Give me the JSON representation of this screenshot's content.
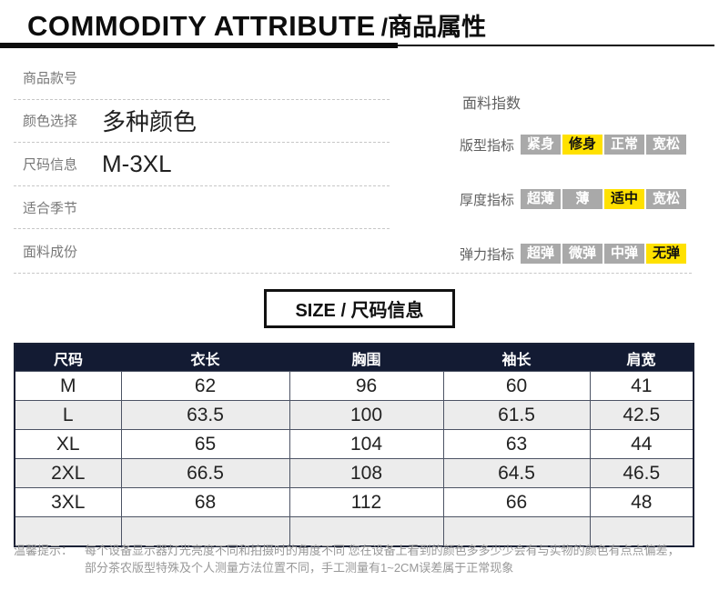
{
  "header": {
    "title_en": "COMMODITY ATTRIBUTE",
    "title_zh": "/商品属性"
  },
  "attributes": [
    {
      "label": "商品款号",
      "value": ""
    },
    {
      "label": "颜色选择",
      "value": "多种颜色"
    },
    {
      "label": "尺码信息",
      "value": "M-3XL"
    },
    {
      "label": "适合季节",
      "value": ""
    },
    {
      "label": "面料成份",
      "value": ""
    }
  ],
  "fabric_index": {
    "title": "面料指数",
    "rows": [
      {
        "label": "版型指标",
        "options": [
          "紧身",
          "修身",
          "正常",
          "宽松"
        ],
        "active": 1
      },
      {
        "label": "厚度指标",
        "options": [
          "超薄",
          "薄",
          "适中",
          "宽松"
        ],
        "active": 2
      },
      {
        "label": "弹力指标",
        "options": [
          "超弹",
          "微弹",
          "中弹",
          "无弹"
        ],
        "active": 3
      }
    ]
  },
  "size_section": {
    "title": "SIZE / 尺码信息"
  },
  "chart_data": {
    "type": "table",
    "title": "SIZE / 尺码信息",
    "headers": [
      "尺码",
      "衣长",
      "胸围",
      "袖长",
      "肩宽"
    ],
    "rows": [
      [
        "M",
        "62",
        "96",
        "60",
        "41"
      ],
      [
        "L",
        "63.5",
        "100",
        "61.5",
        "42.5"
      ],
      [
        "XL",
        "65",
        "104",
        "63",
        "44"
      ],
      [
        "2XL",
        "66.5",
        "108",
        "64.5",
        "46.5"
      ],
      [
        "3XL",
        "68",
        "112",
        "66",
        "48"
      ],
      [
        "",
        "",
        "",
        "",
        ""
      ]
    ]
  },
  "footer": {
    "prefix": "温馨提示：",
    "line1": "每个设备显示器灯光亮度不同和拍摄时的角度不同 您在设备上看到的颜色多多少少会有与实物的颜色有点点偏差，",
    "line2": "部分茶农版型特殊及个人测量方法位置不同，手工测量有1~2CM误差属于正常现象"
  },
  "colors": {
    "accent_yellow": "#ffe100",
    "chip_gray": "#a9a9a9",
    "table_header_navy": "#131b33",
    "row_alt_gray": "#ececec"
  }
}
